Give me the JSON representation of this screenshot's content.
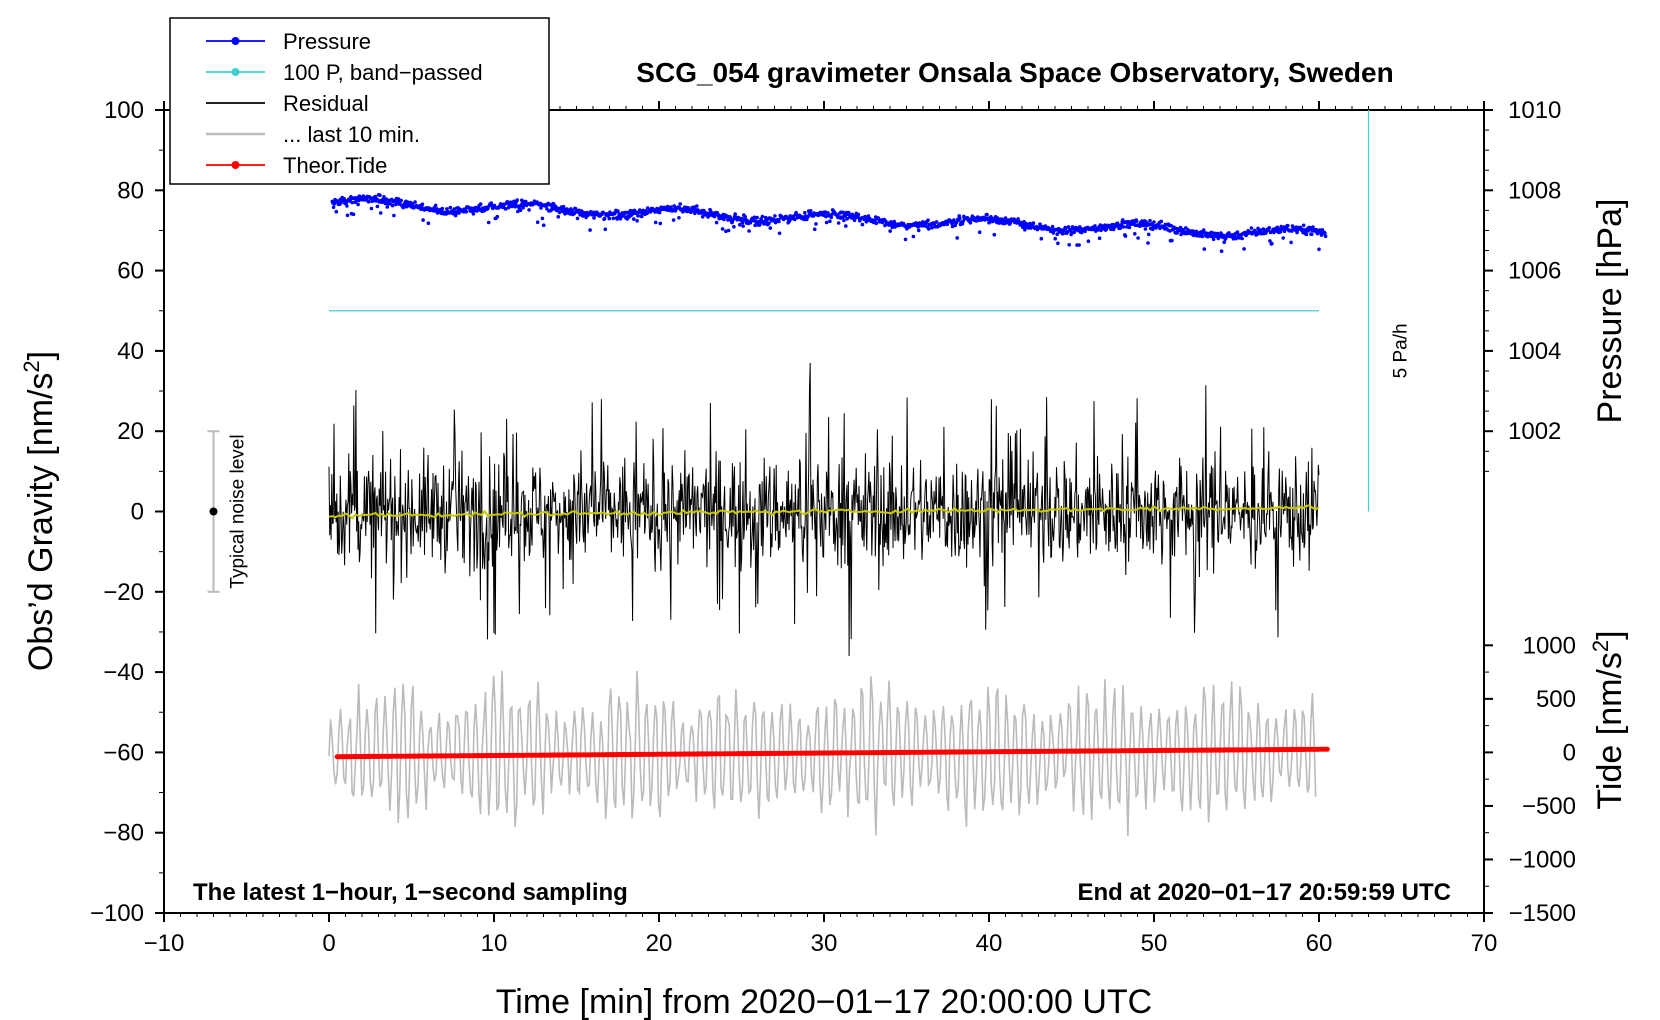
{
  "chart_data": {
    "type": "line",
    "title": "SCG_054 gravimeter Onsala Space Observatory, Sweden",
    "xlabel": "Time [min] from 2020−01−17 20:00:00 UTC",
    "ylabel_main": "Obs’d Gravity [nm/s",
    "ylabel_pressure": "Pressure [hPa]",
    "ylabel_tide": "Tide [nm/s",
    "superscript": "2",
    "ylabel_close": "]",
    "xlim": [
      -10,
      70
    ],
    "ylim": [
      -100,
      100
    ],
    "xticks": [
      -10,
      0,
      10,
      20,
      30,
      40,
      50,
      60,
      70
    ],
    "xtick_labels": [
      "−10",
      "0",
      "10",
      "20",
      "30",
      "40",
      "50",
      "60",
      "70"
    ],
    "yticks": [
      -100,
      -80,
      -60,
      -40,
      -20,
      0,
      20,
      40,
      60,
      80,
      100
    ],
    "ytick_labels": [
      "−100",
      "−80",
      "−60",
      "−40",
      "−20",
      "0",
      "20",
      "40",
      "60",
      "80",
      "100"
    ],
    "pressure_axis": {
      "ticks": [
        1002,
        1004,
        1006,
        1008,
        1010
      ],
      "tick_labels": [
        "1002",
        "1004",
        "1006",
        "1008",
        "1010"
      ],
      "ref_value": 1002,
      "ref_gravity": 20,
      "hpa_per_gravity_unit": 0.1
    },
    "tide_axis": {
      "ticks": [
        -1500,
        -1000,
        -500,
        0,
        500,
        1000
      ],
      "tick_labels": [
        "−1500",
        "−1000",
        "−500",
        "0",
        "500",
        "1000"
      ],
      "min": -1500,
      "max": 1000,
      "gravity_min": -100,
      "gravity_max": -33.33
    },
    "series": [
      {
        "name": "Pressure",
        "color": "#0000ff",
        "marker": "dot",
        "x_range": [
          0.2,
          60.4
        ],
        "start_hpa": 1007.7,
        "end_hpa": 1006.9
      },
      {
        "name": "100 P, band−passed",
        "color": "#40d0d0",
        "marker": "dot",
        "y": 50,
        "x_range": [
          0,
          60
        ]
      },
      {
        "name": "Residual",
        "color": "#000000",
        "x_range": [
          0,
          60
        ],
        "mean": 0,
        "typical_amplitude": 12,
        "max": 37,
        "min": -36
      },
      {
        "name": "... last 10 min.",
        "color": "#bbbbbb",
        "x_range": [
          0,
          59.8
        ],
        "center": -60,
        "typical_amplitude": 15,
        "max": -29,
        "min": -92
      },
      {
        "name": "Theor.Tide",
        "color": "#ff0000",
        "marker": "dot",
        "start_nm_s2": -40,
        "end_nm_s2": 30,
        "x_range": [
          0.5,
          60.5
        ]
      },
      {
        "name": "",
        "color": "#c8c800",
        "x_range": [
          0,
          60
        ],
        "start": -1,
        "end": 1
      }
    ],
    "noise_bar": {
      "label": "Typical noise level",
      "x": -7,
      "center": 0,
      "half_range": 20,
      "color": "#bbbbbb"
    },
    "rate_bar": {
      "label": "5 Pa/h",
      "x": 63,
      "from": 0,
      "to": 100,
      "color": "#40d0d0"
    },
    "annotations": {
      "bottom_left": "The latest 1−hour, 1−second sampling",
      "bottom_right": "End at 2020−01−17 20:59:59 UTC"
    },
    "legend": {
      "placement": "top-left outside"
    }
  }
}
